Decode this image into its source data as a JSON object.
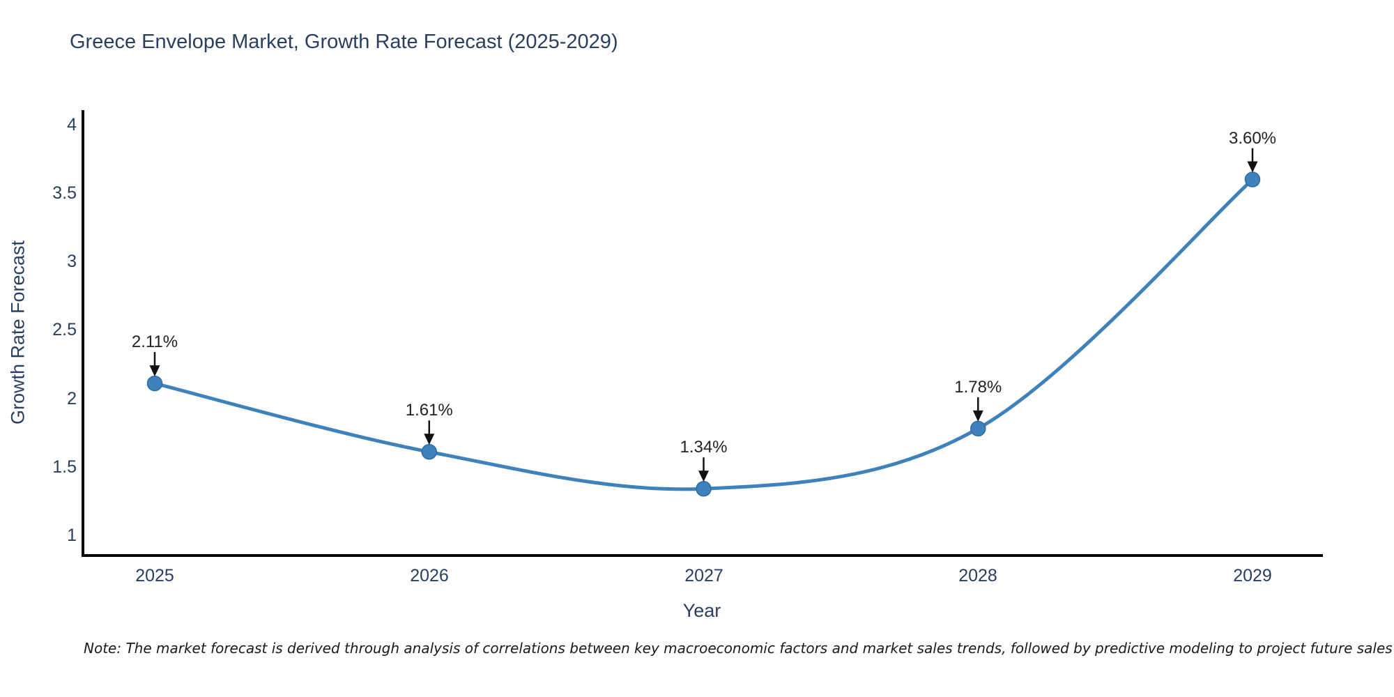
{
  "title": "Greece Envelope Market, Growth Rate Forecast (2025-2029)",
  "note": "Note: The market forecast is derived through analysis of correlations between key macroeconomic factors and market sales trends, followed by predictive modeling to project future sales",
  "colors": {
    "line": "#3f81bb",
    "marker_fill": "#3f81bb",
    "marker_edge": "#316ba0",
    "axis_line": "#000000",
    "text": "#2a3f5f",
    "annotation_text": "#222222",
    "arrow": "#111111",
    "background": "#ffffff"
  },
  "chart_data": {
    "type": "line",
    "line_shape": "spline",
    "title": "Greece Envelope Market, Growth Rate Forecast (2025-2029)",
    "xlabel": "Year",
    "ylabel": "Growth Rate Forecast",
    "categories": [
      "2025",
      "2026",
      "2027",
      "2028",
      "2029"
    ],
    "values": [
      2.11,
      1.61,
      1.34,
      1.78,
      3.6
    ],
    "point_labels": [
      "2.11%",
      "1.61%",
      "1.34%",
      "1.78%",
      "3.60%"
    ],
    "xtick_labels": [
      "2025",
      "2026",
      "2027",
      "2028",
      "2029"
    ],
    "ytick_labels": [
      "4",
      "3.5",
      "3",
      "2.5",
      "2",
      "1.5",
      "1"
    ],
    "ytick_values": [
      4,
      3.5,
      3,
      2.5,
      2,
      1.5,
      1
    ],
    "ylim": [
      0.84,
      4.1
    ],
    "grid": false,
    "legend": "none",
    "markers": true,
    "annotations_arrows": true
  }
}
